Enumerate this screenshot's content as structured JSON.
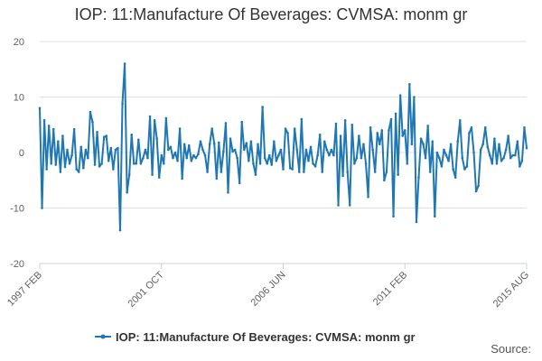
{
  "chart_data": {
    "type": "line",
    "title": "IOP: 11:Manufacture Of Beverages: CVMSA: monm gr",
    "xlabel": "",
    "ylabel": "",
    "ylim": [
      -20,
      20
    ],
    "yticks": [
      20,
      10,
      0,
      -10,
      -20
    ],
    "x_range": [
      "1997 FEB",
      "2015 AUG"
    ],
    "xticks": [
      "1997 FEB",
      "2001 OCT",
      "2006 JUN",
      "2011 FEB",
      "2015 AUG"
    ],
    "grid": true,
    "legend_position": "bottom",
    "series": [
      {
        "name": "IOP: 11:Manufacture Of Beverages: CVMSA: monm gr",
        "color": "#1f77b4",
        "values": [
          8,
          -10,
          5.8,
          -3,
          4.8,
          -2,
          4.2,
          -2.2,
          2,
          -3.5,
          3,
          -2.6,
          0.5,
          -2,
          -0.5,
          4.2,
          -3,
          -3.5,
          1,
          -2.8,
          0.5,
          -1,
          7.3,
          5.5,
          -2.2,
          3.7,
          -2.5,
          -2,
          2.8,
          3,
          -1.5,
          0.8,
          -3,
          0.5,
          0.8,
          -14,
          8.8,
          16,
          -7.2,
          -4,
          3.2,
          -2,
          -2,
          2.3,
          -2,
          -1,
          0.5,
          -1,
          6.5,
          -4,
          5.8,
          2.5,
          -4.5,
          -0.5,
          -2,
          6.2,
          0.5,
          1,
          -1,
          0,
          -1.5,
          4.3,
          -4.7,
          1.5,
          -1,
          1.3,
          -1.5,
          -0.5,
          -1,
          -0.3,
          2,
          0.5,
          -0.5,
          -3.5,
          1.5,
          4.3,
          1.6,
          -4.7,
          1.8,
          -3.5,
          0.2,
          5.3,
          -7.2,
          2.5,
          0.2,
          0.5,
          -1,
          -5.5,
          5.5,
          0.5,
          1.7,
          -1.5,
          2,
          -2,
          -4,
          1.5,
          -2,
          8.2,
          -1,
          -2,
          -0.5,
          -2.2,
          2,
          -1.5,
          -0.5,
          0.5,
          -3,
          4.3,
          3.5,
          -2.8,
          -3,
          4.3,
          0.5,
          -3.5,
          6,
          -3.5,
          0.5,
          -1.5,
          1,
          -2,
          -2.5,
          -0.5,
          3.2,
          -3.5,
          2,
          0.5,
          -0.5,
          0.5,
          -0.5,
          5.2,
          -9.5,
          3,
          -4.2,
          5.8,
          -3.5,
          -9.5,
          5,
          -2,
          -1,
          3,
          -1,
          1.5,
          -2,
          -8,
          4.5,
          0.5,
          -3.5,
          3.5,
          1.5,
          4,
          -5,
          -3.5,
          4,
          6,
          -11.5,
          7,
          -4,
          10.3,
          3,
          4,
          -2,
          12.3,
          1.5,
          10,
          -12.5,
          -4.5,
          2.5,
          1.5,
          -1,
          4.8,
          -3.5,
          2,
          -11.5,
          0,
          -1,
          -2.5,
          0.5,
          -0.5,
          -1.5,
          1.5,
          -3,
          -4.5,
          2,
          5.8,
          -1,
          -3,
          -2.5,
          3.5,
          4.5,
          0,
          -7,
          -6,
          0.5,
          1.5,
          4.5,
          1,
          -0.5,
          -2,
          2.5,
          -2,
          1.5,
          -1.5,
          -1,
          0.5,
          3,
          -1,
          -0.5,
          -0.5,
          2,
          -2.5,
          -1.5,
          4.5,
          0.8
        ]
      }
    ]
  },
  "footer": {
    "source_label": "Source:"
  }
}
